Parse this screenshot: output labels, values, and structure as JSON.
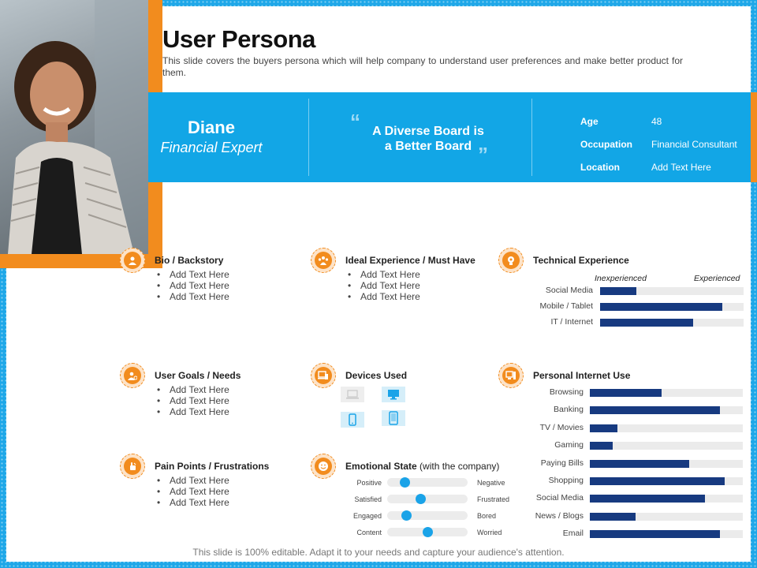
{
  "title": "User Persona",
  "subtitle": "This slide covers the buyers persona which will help company to understand user preferences and make better product for them.",
  "persona": {
    "name": "Diane",
    "role": "Financial Expert",
    "quote_line1": "A Diverse Board is",
    "quote_line2": "a Better Board",
    "info": [
      {
        "label": "Age",
        "value": "48"
      },
      {
        "label": "Occupation",
        "value": "Financial Consultant"
      },
      {
        "label": "Location",
        "value": "Add Text Here"
      }
    ]
  },
  "sections": {
    "bio": {
      "title": "Bio / Backstory",
      "items": [
        "Add Text Here",
        "Add Text Here",
        "Add Text Here"
      ]
    },
    "ideal": {
      "title": "Ideal Experience / Must Have",
      "items": [
        "Add Text Here",
        "Add Text Here",
        "Add Text Here"
      ]
    },
    "goals": {
      "title": "User Goals / Needs",
      "items": [
        "Add Text Here",
        "Add Text Here",
        "Add Text Here"
      ]
    },
    "pain": {
      "title": "Pain Points / Frustrations",
      "items": [
        "Add Text Here",
        "Add Text Here",
        "Add Text Here"
      ]
    },
    "devices": {
      "title": "Devices Used"
    },
    "emotional": {
      "title_bold": "Emotional  State",
      "title_normal": "(with the company)"
    },
    "technical": {
      "title": "Technical Experience",
      "low": "Inexperienced",
      "high": "Experienced"
    },
    "internet": {
      "title": "Personal Internet Use"
    }
  },
  "chart_data": [
    {
      "type": "bar",
      "categories": [
        "Social Media",
        "Mobile / Tablet",
        "IT / Internet"
      ],
      "values": [
        25,
        85,
        65
      ],
      "ylim": [
        0,
        100
      ],
      "accent": "#173a80"
    },
    {
      "type": "bar",
      "categories": [
        "Browsing",
        "Banking",
        "TV  / Movies",
        "Gaming",
        "Paying Bills",
        "Shopping",
        "Social Media",
        "News / Blogs",
        "Email"
      ],
      "values": [
        47,
        85,
        18,
        15,
        65,
        88,
        75,
        30,
        85
      ],
      "ylim": [
        0,
        100
      ],
      "accent": "#173a80"
    }
  ],
  "emotions": [
    {
      "left": "Positive",
      "right": "Negative",
      "value": 0.22
    },
    {
      "left": "Satisfied",
      "right": "Frustrated",
      "value": 0.41
    },
    {
      "left": "Engaged",
      "right": "Bored",
      "value": 0.24
    },
    {
      "left": "Content",
      "right": "Worried",
      "value": 0.5
    }
  ],
  "devices": [
    "laptop-icon",
    "desktop-icon",
    "smartphone-icon",
    "tablet-icon"
  ],
  "footer": "This slide is 100% editable. Adapt it to your needs and capture your audience's attention.",
  "colors": {
    "accent_orange": "#f28c1e",
    "banner_blue": "#12a6e6",
    "bar_navy": "#173a80",
    "knob_blue": "#1aa3e8"
  }
}
